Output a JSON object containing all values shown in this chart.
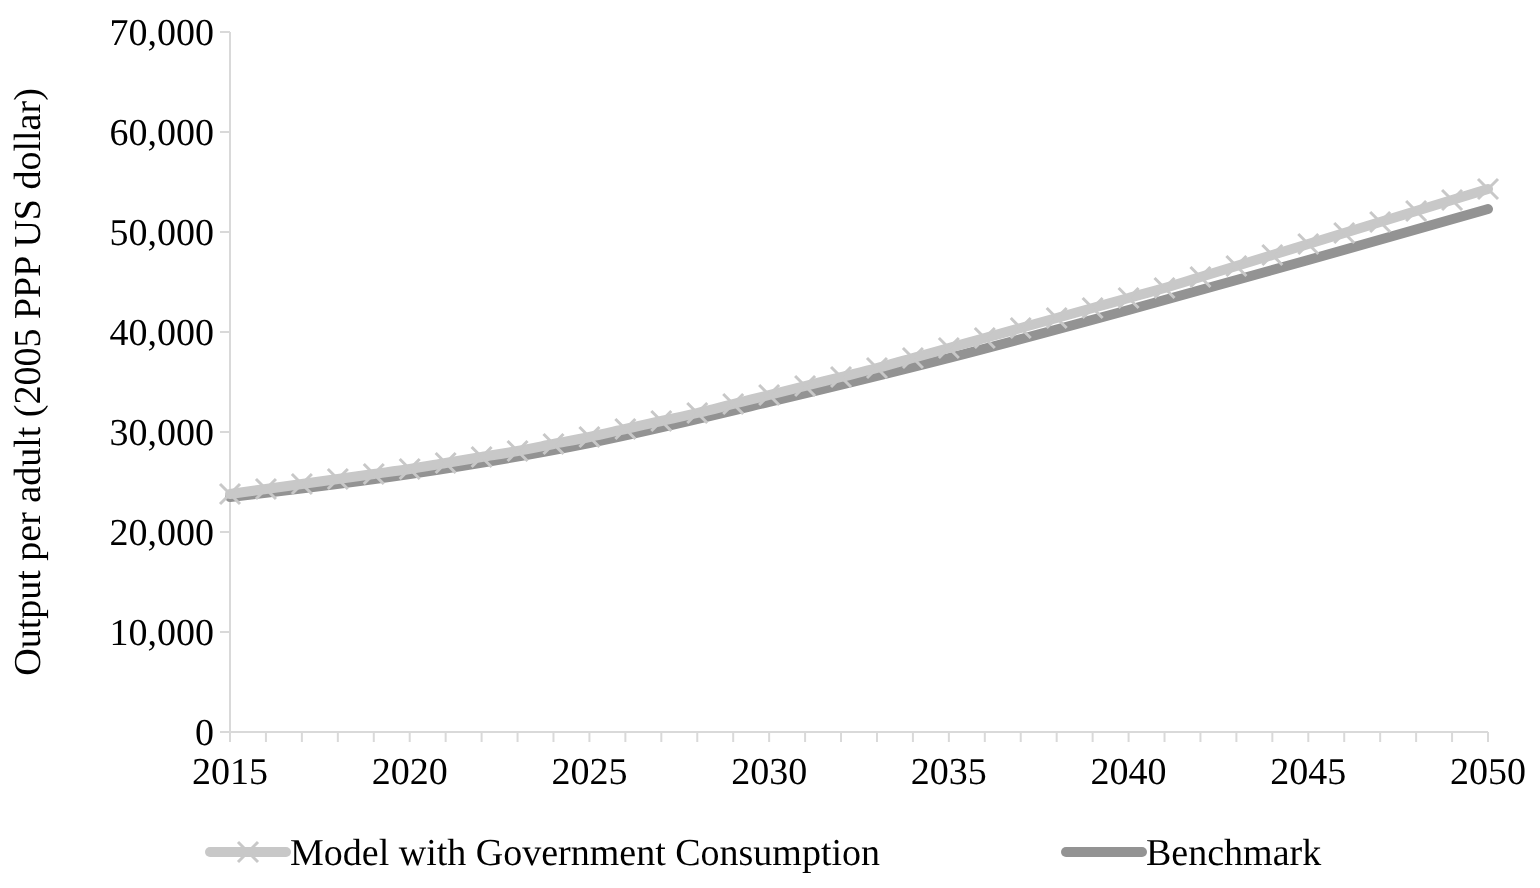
{
  "chart_data": {
    "type": "line",
    "ylabel": "Output per adult (2005 PPP US dollar)",
    "xlim": [
      2015,
      2050
    ],
    "xticks": [
      2015,
      2020,
      2025,
      2030,
      2035,
      2040,
      2045,
      2050
    ],
    "ylim": [
      0,
      70000
    ],
    "yticks": [
      {
        "value": 0,
        "label": "0"
      },
      {
        "value": 10000,
        "label": "10,000"
      },
      {
        "value": 20000,
        "label": "20,000"
      },
      {
        "value": 30000,
        "label": "30,000"
      },
      {
        "value": 40000,
        "label": "40,000"
      },
      {
        "value": 50000,
        "label": "50,000"
      },
      {
        "value": 60000,
        "label": "60,000"
      },
      {
        "value": 70000,
        "label": "70,000"
      }
    ],
    "grid": false,
    "legend": "bottom",
    "series": [
      {
        "name": "Model with Government Consumption",
        "color": "#c8c8c8",
        "marker": "cross",
        "x": [
          2015,
          2016,
          2017,
          2018,
          2019,
          2020,
          2021,
          2022,
          2023,
          2024,
          2025,
          2026,
          2027,
          2028,
          2029,
          2030,
          2031,
          2032,
          2033,
          2034,
          2035,
          2036,
          2037,
          2038,
          2039,
          2040,
          2041,
          2042,
          2043,
          2044,
          2045,
          2046,
          2047,
          2048,
          2049,
          2050
        ],
        "values": [
          23800,
          24300,
          24800,
          25300,
          25800,
          26300,
          26900,
          27500,
          28100,
          28800,
          29500,
          30300,
          31100,
          31900,
          32800,
          33700,
          34600,
          35500,
          36400,
          37400,
          38400,
          39400,
          40400,
          41400,
          42400,
          43400,
          44400,
          45500,
          46600,
          47700,
          48800,
          49900,
          51000,
          52100,
          53200,
          54300
        ]
      },
      {
        "name": "Benchmark",
        "color": "#939393",
        "marker": "none",
        "x": [
          2015,
          2020,
          2025,
          2030,
          2035,
          2040,
          2045,
          2050
        ],
        "values": [
          23500,
          25800,
          28900,
          33000,
          37400,
          42200,
          47200,
          52300
        ]
      }
    ]
  }
}
